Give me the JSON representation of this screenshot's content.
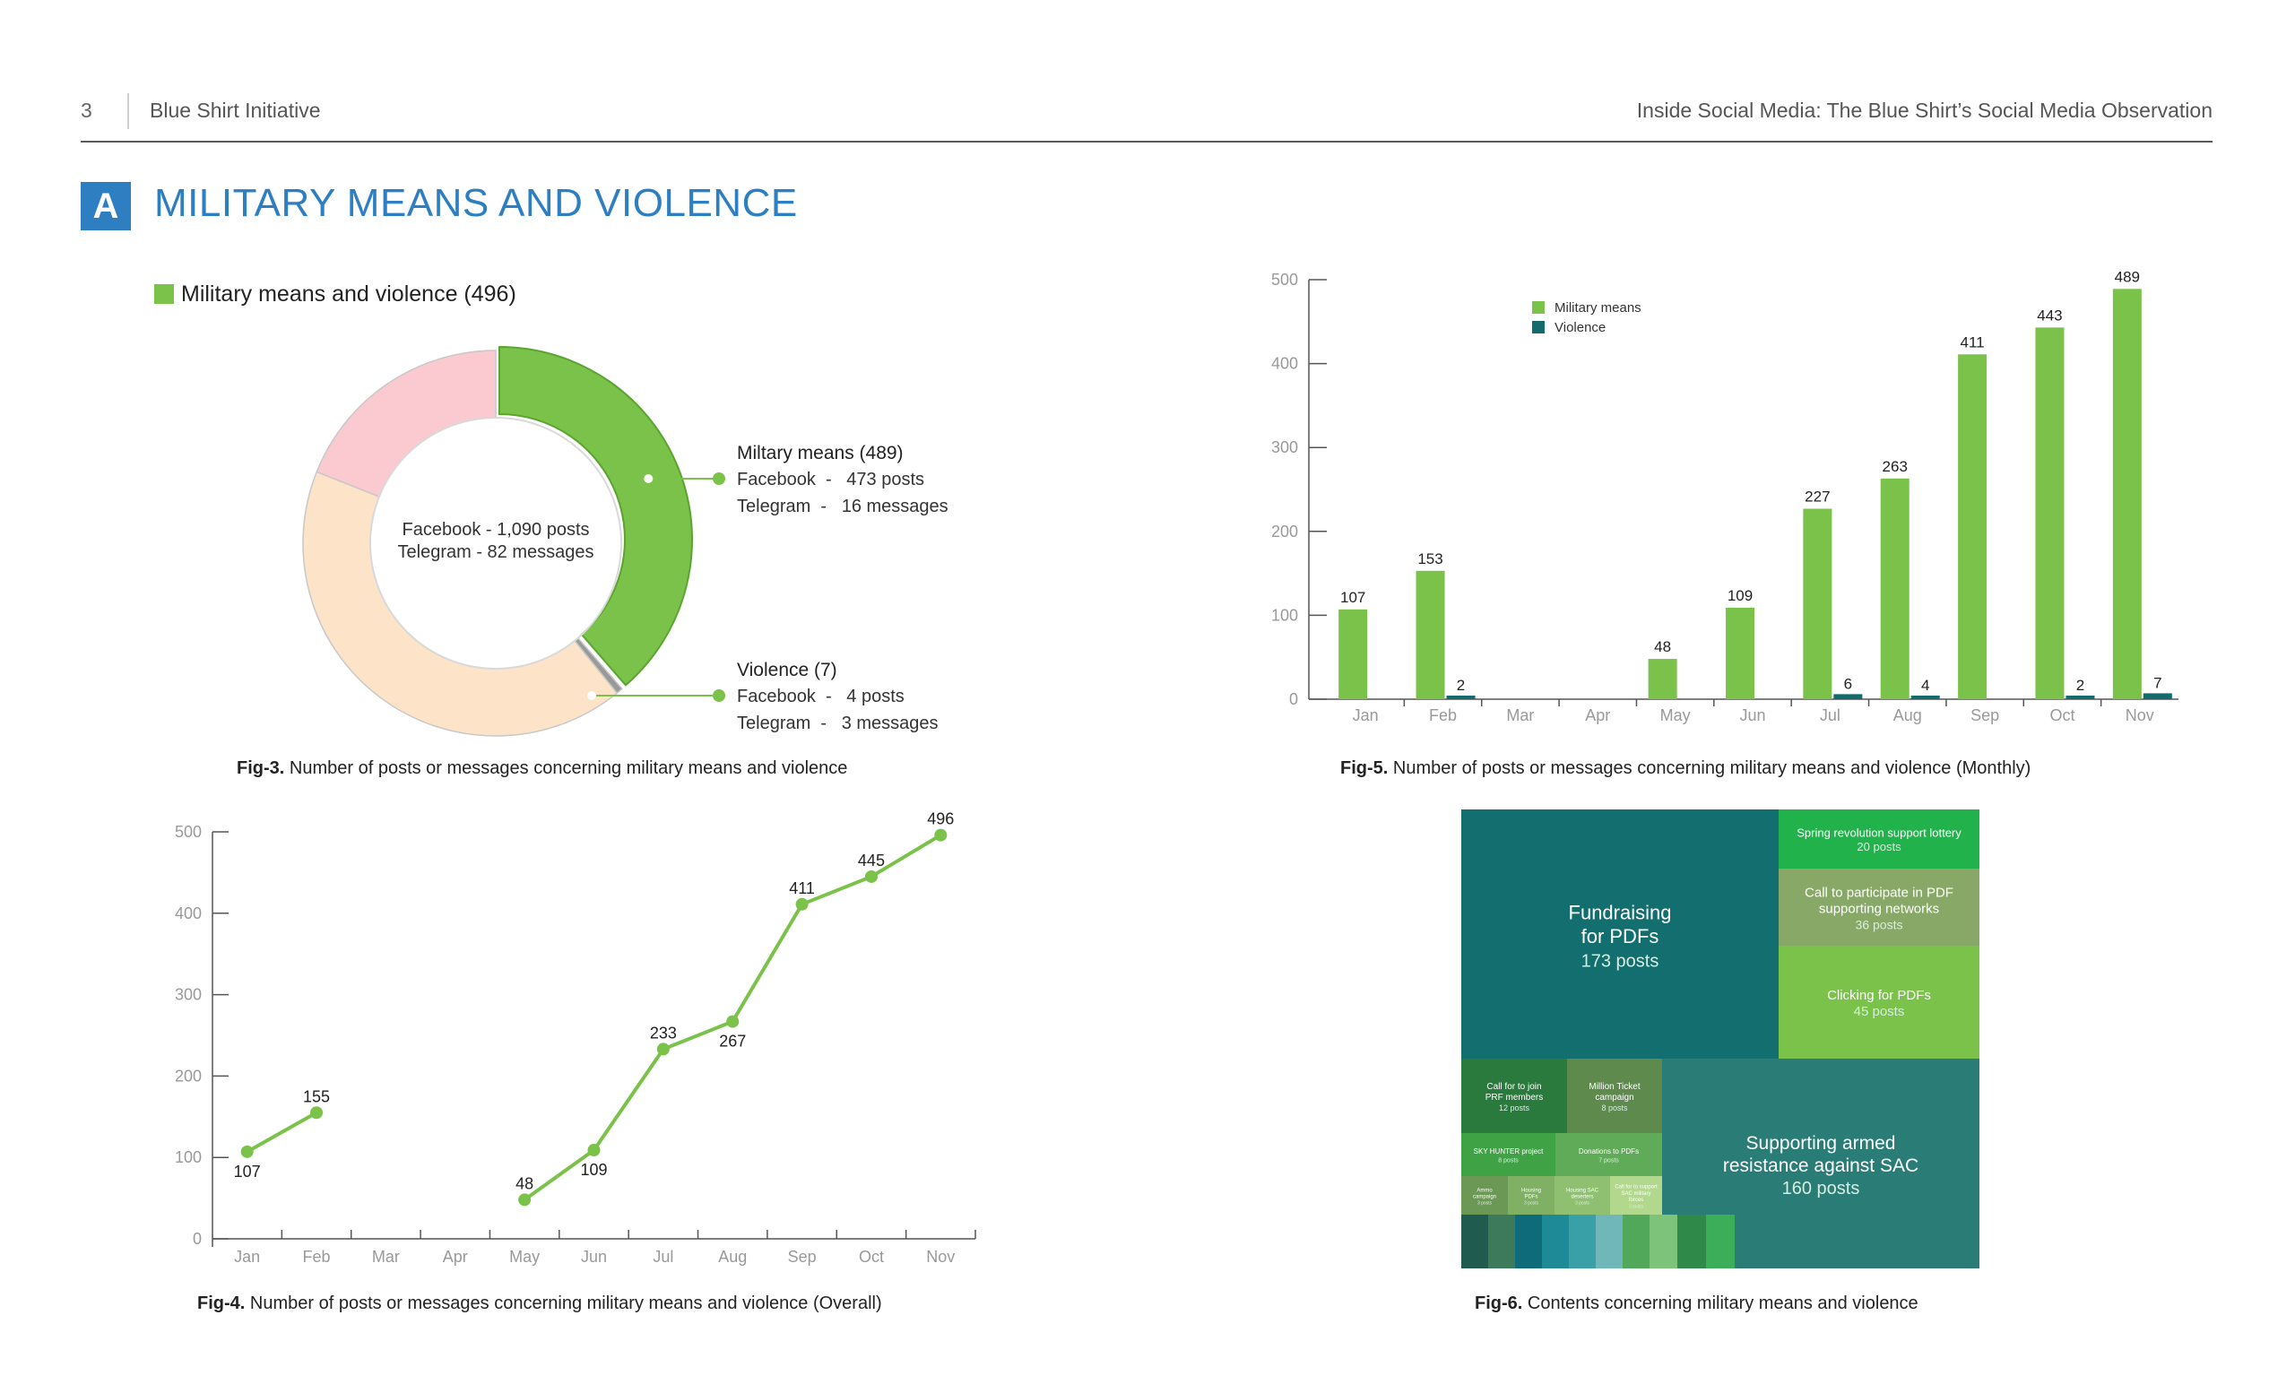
{
  "header": {
    "page_number": "3",
    "left_title": "Blue Shirt Initiative",
    "right_title": "Inside Social Media: The Blue Shirt’s Social Media Observation"
  },
  "section": {
    "badge": "A",
    "title": "MILITARY MEANS AND VIOLENCE"
  },
  "colors": {
    "accent_blue": "#2d7fc1",
    "green": "#7bc24a",
    "teal": "#136b6e",
    "pink": "#fbc9d0",
    "peach": "#fde3c8"
  },
  "chart_data": [
    {
      "id": "fig3",
      "type": "pie",
      "legend": "Military means and violence (496)",
      "center_lines": [
        "Facebook - 1,090 posts",
        "Telegram - 82 messages"
      ],
      "segments": [
        {
          "name": "Miltary means (489)",
          "lines": [
            "Facebook  -   473 posts",
            "Telegram  -   16 messages"
          ],
          "value": 489,
          "color": "#7bc24a"
        },
        {
          "name": "Violence (7)",
          "lines": [
            "Facebook  -   4 posts",
            "Telegram  -   3 messages"
          ],
          "value": 7,
          "color": "#999999"
        },
        {
          "name": "",
          "value": 530,
          "color": "#fde3c8"
        },
        {
          "name": "",
          "value": 240,
          "color": "#fbc9d0"
        }
      ],
      "caption_bold": "Fig-3.",
      "caption": " Number of posts or messages concerning military means and violence"
    },
    {
      "id": "fig5",
      "type": "bar",
      "categories": [
        "Jan",
        "Feb",
        "Mar",
        "Apr",
        "May",
        "Jun",
        "Jul",
        "Aug",
        "Sep",
        "Oct",
        "Nov"
      ],
      "series": [
        {
          "name": "Military means",
          "color": "#7bc24a",
          "values": [
            107,
            153,
            null,
            null,
            48,
            109,
            227,
            263,
            411,
            443,
            489
          ]
        },
        {
          "name": "Violence",
          "color": "#136b6e",
          "values": [
            null,
            2,
            null,
            null,
            null,
            null,
            6,
            4,
            null,
            2,
            7
          ]
        }
      ],
      "ylim": [
        0,
        500
      ],
      "yticks": [
        0,
        100,
        200,
        300,
        400,
        500
      ],
      "legend_position": "top-left",
      "caption_bold": "Fig-5.",
      "caption": " Number of posts or messages concerning military means and violence (Monthly)"
    },
    {
      "id": "fig4",
      "type": "line",
      "categories": [
        "Jan",
        "Feb",
        "Mar",
        "Apr",
        "May",
        "Jun",
        "Jul",
        "Aug",
        "Sep",
        "Oct",
        "Nov"
      ],
      "values": [
        107,
        155,
        null,
        null,
        48,
        109,
        233,
        267,
        411,
        445,
        496
      ],
      "label_below": [
        true,
        false,
        false,
        false,
        false,
        true,
        false,
        true,
        false,
        false,
        false
      ],
      "ylim": [
        0,
        500
      ],
      "yticks": [
        0,
        100,
        200,
        300,
        400,
        500
      ],
      "color": "#7bc24a",
      "caption_bold": "Fig-4.",
      "caption": " Number of posts or messages concerning military means and violence (Overall)"
    },
    {
      "id": "fig6",
      "type": "treemap",
      "items": [
        {
          "title": "Fundraising\nfor PDFs",
          "posts": "173 posts",
          "value": 173,
          "color": "#136e70"
        },
        {
          "title": "Supporting armed\nresistance against SAC",
          "posts": "160 posts",
          "value": 160,
          "color": "#2a7c77"
        },
        {
          "title": "Clicking for PDFs",
          "posts": "45 posts",
          "value": 45,
          "color": "#7bc24a"
        },
        {
          "title": "Call to participate in PDF\nsupporting networks",
          "posts": "36 posts",
          "value": 36,
          "color": "#87a866"
        },
        {
          "title": "Spring revolution support lottery",
          "posts": "20 posts",
          "value": 20,
          "color": "#22b24c"
        },
        {
          "title": "Call for to join\nPRF members",
          "posts": "12 posts",
          "value": 12,
          "color": "#2b7a3d"
        },
        {
          "title": "Million Ticket\ncampaign",
          "posts": "8 posts",
          "value": 8,
          "color": "#5e8a4e"
        },
        {
          "title": "SKY HUNTER project",
          "posts": "8 posts",
          "value": 8,
          "color": "#3fa346"
        },
        {
          "title": "Donations to PDFs",
          "posts": "7 posts",
          "value": 7,
          "color": "#60ab57"
        },
        {
          "title": "Ammo\ncampaign",
          "posts": "3 posts",
          "value": 3,
          "color": "#6c9856"
        },
        {
          "title": "Housing\nPDFs",
          "posts": "3 posts",
          "value": 3,
          "color": "#7fb063"
        },
        {
          "title": "Housing SAC\ndeserters",
          "posts": "3 posts",
          "value": 3,
          "color": "#8fc071"
        },
        {
          "title": "Call for to support\nSAC military\nforces",
          "posts": "3 posts",
          "value": 3,
          "color": "#b1d88c"
        }
      ],
      "caption_bold": "Fig-6.",
      "caption": " Contents concerning military means and violence"
    }
  ]
}
